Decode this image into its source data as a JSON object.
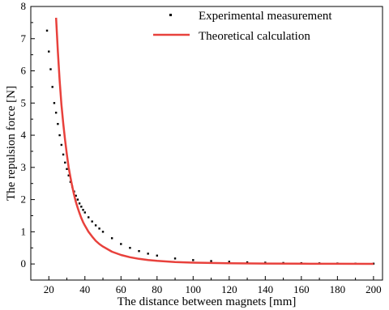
{
  "chart_data": {
    "type": "scatter",
    "xlabel": "The distance between magnets [mm]",
    "ylabel": "The repulsion force [N]",
    "xlim": [
      10,
      205
    ],
    "ylim": [
      -0.5,
      8
    ],
    "xticks": [
      20,
      40,
      60,
      80,
      100,
      120,
      140,
      160,
      180,
      200
    ],
    "yticks": [
      0,
      1,
      2,
      3,
      4,
      5,
      6,
      7,
      8
    ],
    "legend_position": "top-right",
    "series": [
      {
        "name": "Experimental measurement",
        "style": "points",
        "color": "#000000",
        "x": [
          19,
          20,
          21,
          22,
          23,
          24,
          25,
          26,
          27,
          28,
          29,
          30,
          31,
          32,
          33,
          34,
          35,
          36,
          37,
          38,
          39,
          40,
          42,
          44,
          46,
          48,
          50,
          55,
          60,
          65,
          70,
          75,
          80,
          90,
          100,
          110,
          120,
          130,
          140,
          150,
          160,
          170,
          180,
          190,
          200
        ],
        "y": [
          7.25,
          6.6,
          6.05,
          5.5,
          5.0,
          4.7,
          4.35,
          4.0,
          3.7,
          3.4,
          3.15,
          2.95,
          2.75,
          2.55,
          2.4,
          2.25,
          2.12,
          2.0,
          1.88,
          1.78,
          1.68,
          1.6,
          1.45,
          1.32,
          1.2,
          1.1,
          1.0,
          0.8,
          0.62,
          0.5,
          0.4,
          0.32,
          0.26,
          0.17,
          0.12,
          0.09,
          0.07,
          0.05,
          0.04,
          0.03,
          0.025,
          0.02,
          0.015,
          0.01,
          0.01
        ]
      },
      {
        "name": "Theoretical calculation",
        "style": "line",
        "color": "#e8413c",
        "x": [
          24,
          25,
          26,
          27,
          28,
          29,
          30,
          31,
          32,
          33,
          34,
          35,
          36,
          37,
          38,
          39,
          40,
          42,
          44,
          46,
          48,
          50,
          55,
          60,
          65,
          70,
          75,
          80,
          90,
          100,
          110,
          120,
          140,
          160,
          180,
          200
        ],
        "y": [
          7.65,
          6.6,
          5.7,
          4.95,
          4.35,
          3.85,
          3.4,
          3.0,
          2.68,
          2.4,
          2.15,
          1.93,
          1.74,
          1.58,
          1.43,
          1.3,
          1.19,
          1.0,
          0.85,
          0.72,
          0.62,
          0.54,
          0.38,
          0.28,
          0.21,
          0.16,
          0.12,
          0.095,
          0.06,
          0.04,
          0.03,
          0.02,
          0.012,
          0.008,
          0.005,
          0.003
        ]
      }
    ]
  }
}
